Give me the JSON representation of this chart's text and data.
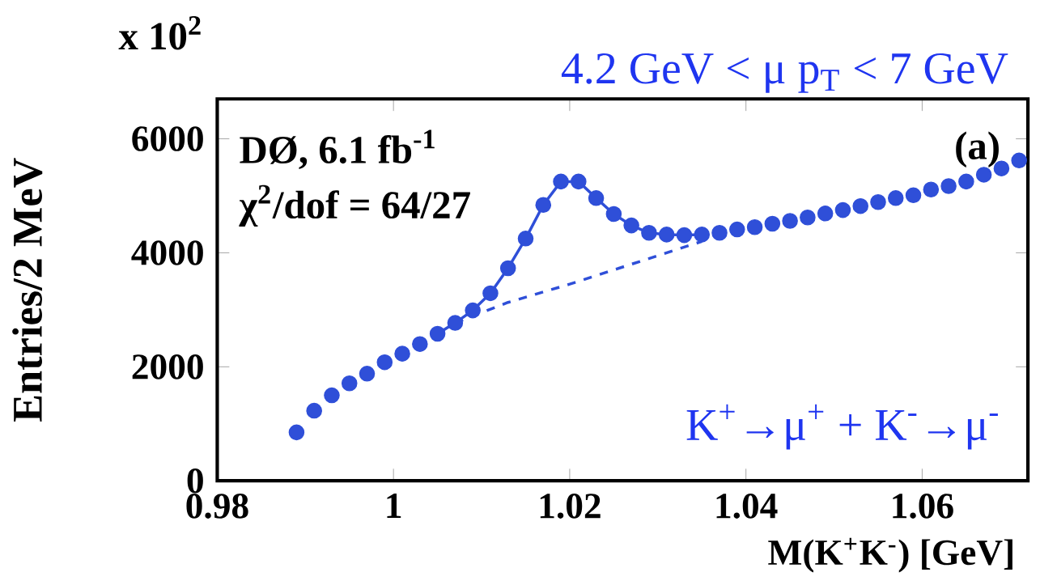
{
  "chart_data": {
    "type": "scatter",
    "xlabel": "M(K$^{+}$K$^{-}$) [GeV]",
    "ylabel": "Entries/2 MeV",
    "annotations": [
      "x 10$^{2}$",
      "4.2 GeV < μ p$_{T}$ < 7 GeV",
      "DØ, 6.1 fb$^{-1}$",
      "χ$^{2}$/dof = 64/27",
      "(a)",
      "K$^{+}$→μ$^{+}$ +  K$^{-}$→μ$^{-}$"
    ],
    "xlim": [
      0.98,
      1.072
    ],
    "ylim": [
      0,
      6700
    ],
    "xticks": [
      0.98,
      1,
      1.02,
      1.04,
      1.06
    ],
    "yticks": [
      0,
      2000,
      4000,
      6000
    ],
    "series": [
      {
        "marker": "circle",
        "color": "#2f4fd8",
        "x": [
          0.989,
          0.991,
          0.993,
          0.995,
          0.997,
          0.999,
          1.001,
          1.003,
          1.005,
          1.007,
          1.009,
          1.011,
          1.013,
          1.015,
          1.017,
          1.019,
          1.021,
          1.023,
          1.025,
          1.027,
          1.029,
          1.031,
          1.033,
          1.035,
          1.037,
          1.039,
          1.041,
          1.043,
          1.045,
          1.047,
          1.049,
          1.051,
          1.053,
          1.055,
          1.057,
          1.059,
          1.061,
          1.063,
          1.065,
          1.067,
          1.069,
          1.071
        ],
        "values": [
          850,
          1230,
          1500,
          1710,
          1880,
          2080,
          2230,
          2400,
          2580,
          2770,
          2990,
          3290,
          3730,
          4250,
          4840,
          5250,
          5250,
          4960,
          4680,
          4480,
          4350,
          4320,
          4310,
          4320,
          4350,
          4410,
          4450,
          4510,
          4560,
          4620,
          4690,
          4750,
          4820,
          4890,
          4960,
          5010,
          5110,
          5170,
          5250,
          5370,
          5480,
          5620
        ]
      },
      {
        "type": "line",
        "marker": "none",
        "color": "#2f4fd8",
        "x": [
          1.005,
          1.007,
          1.009,
          1.011,
          1.013,
          1.015,
          1.017,
          1.019,
          1.021,
          1.023,
          1.025,
          1.027,
          1.029,
          1.031,
          1.033,
          1.035
        ],
        "values": [
          2580,
          2770,
          2990,
          3290,
          3730,
          4250,
          4840,
          5250,
          5250,
          4960,
          4680,
          4480,
          4350,
          4320,
          4310,
          4320
        ]
      },
      {
        "type": "line",
        "marker": "none",
        "line_style": "dashed",
        "color": "#2f4fd8",
        "x": [
          1.007,
          1.013,
          1.02,
          1.027,
          1.035
        ],
        "values": [
          2770,
          3130,
          3450,
          3800,
          4200
        ]
      }
    ]
  }
}
